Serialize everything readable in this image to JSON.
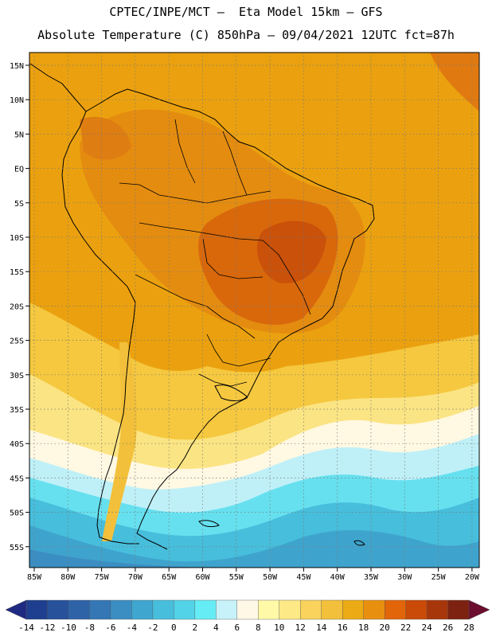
{
  "header": {
    "line1": "CPTEC/INPE/MCT –  Eta Model 15km – GFS",
    "line2": "Absolute Temperature (C) 850hPa – 09/04/2021 12UTC fct=87h"
  },
  "map": {
    "lat_labels": [
      "15N",
      "10N",
      "5N",
      "EQ",
      "5S",
      "10S",
      "15S",
      "20S",
      "25S",
      "30S",
      "35S",
      "40S",
      "45S",
      "50S",
      "55S"
    ],
    "lon_labels": [
      "85W",
      "80W",
      "75W",
      "70W",
      "65W",
      "60W",
      "55W",
      "50W",
      "45W",
      "40W",
      "35W",
      "30W",
      "25W",
      "20W"
    ]
  },
  "colorbar": {
    "labels": [
      "-14",
      "-12",
      "-10",
      "-8",
      "-6",
      "-4",
      "-2",
      "0",
      "2",
      "4",
      "6",
      "8",
      "10",
      "12",
      "14",
      "16",
      "18",
      "20",
      "22",
      "24",
      "26",
      "28"
    ],
    "colors": [
      "#1e3f8f",
      "#27519b",
      "#2e63a8",
      "#3576b5",
      "#3b8ec2",
      "#3fa6cf",
      "#47bedc",
      "#52d3e8",
      "#66ecf4",
      "#c8f2f9",
      "#fff8e6",
      "#fff9a8",
      "#fde985",
      "#f9d35c",
      "#f2c03a",
      "#ecaa14",
      "#e98f10",
      "#e2650a",
      "#c94b07",
      "#a8360b",
      "#7d2210"
    ]
  }
}
